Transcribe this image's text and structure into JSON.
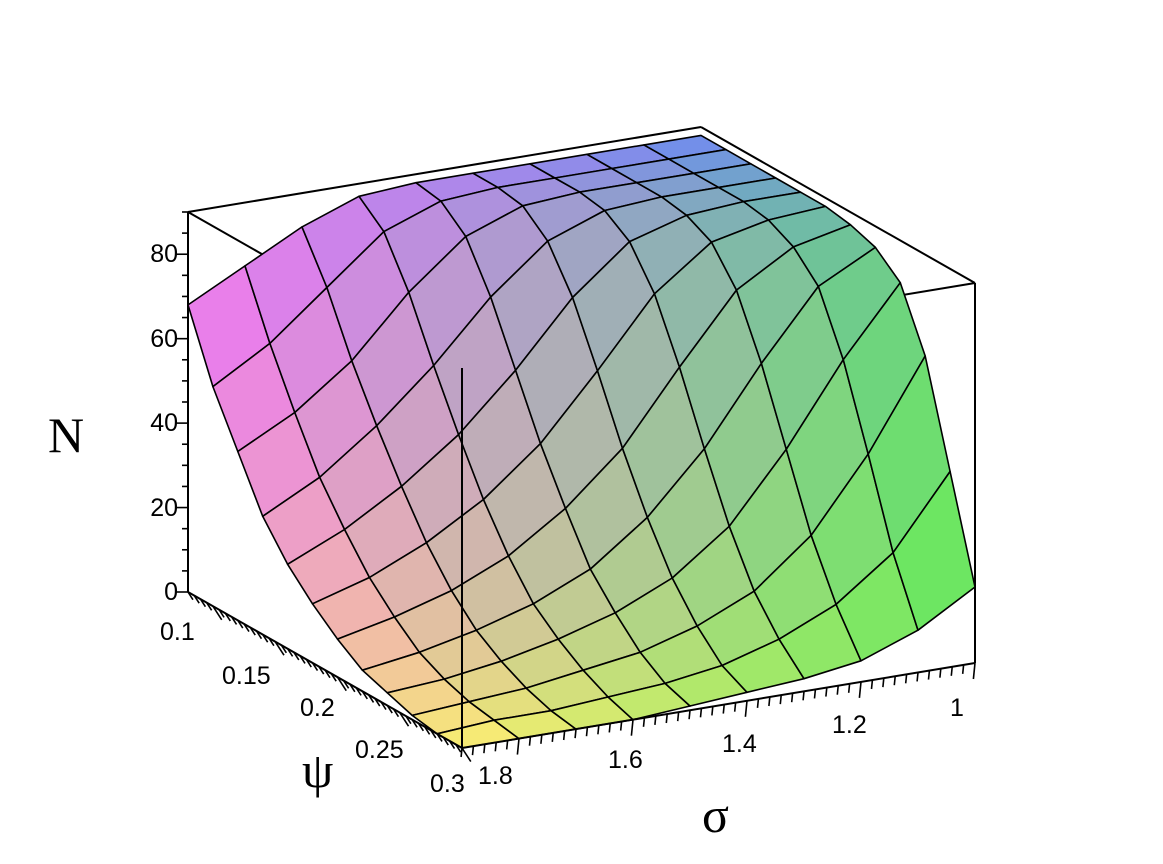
{
  "chart_data": {
    "type": "surface3d",
    "xlabel": "σ",
    "ylabel": "ψ",
    "zlabel": "N",
    "x_ticks": [
      "1",
      "1.2",
      "1.4",
      "1.6",
      "1.8"
    ],
    "y_ticks": [
      "0.1",
      "0.15",
      "0.2",
      "0.25",
      "0.3"
    ],
    "z_ticks": [
      "0",
      "20",
      "40",
      "60",
      "80"
    ],
    "xlim": [
      1,
      1.9
    ],
    "ylim": [
      0.08,
      0.3
    ],
    "zlim": [
      0,
      90
    ],
    "grid_sigma": [
      1.0,
      1.1,
      1.2,
      1.3,
      1.4,
      1.5,
      1.6,
      1.7,
      1.8,
      1.9
    ],
    "grid_psi": [
      0.08,
      0.1,
      0.12,
      0.14,
      0.16,
      0.18,
      0.2,
      0.22,
      0.24,
      0.26,
      0.28,
      0.3
    ],
    "surface_N": [
      [
        88,
        88,
        88,
        88,
        88,
        88,
        87,
        82,
        75,
        68
      ],
      [
        88,
        88,
        88,
        88,
        88,
        87,
        82,
        71,
        60,
        52
      ],
      [
        88,
        88,
        88,
        88,
        87,
        82,
        71,
        57,
        47,
        40
      ],
      [
        88,
        88,
        88,
        87,
        82,
        71,
        57,
        45,
        35,
        28
      ],
      [
        88,
        88,
        87,
        83,
        72,
        57,
        44,
        34,
        26,
        20
      ],
      [
        88,
        87,
        84,
        74,
        58,
        43,
        32,
        24,
        18,
        14
      ],
      [
        87,
        84,
        76,
        60,
        43,
        31,
        22,
        16,
        12,
        9
      ],
      [
        85,
        78,
        62,
        44,
        30,
        20,
        14,
        10,
        7,
        5
      ],
      [
        80,
        64,
        45,
        29,
        19,
        13,
        9,
        6,
        4,
        3
      ],
      [
        66,
        45,
        28,
        17,
        11,
        7,
        5,
        3,
        2,
        1
      ],
      [
        42,
        25,
        15,
        9,
        5,
        3,
        2,
        1,
        1,
        0
      ],
      [
        18,
        10,
        5,
        3,
        2,
        1,
        0,
        0,
        0,
        0
      ]
    ],
    "colors": {
      "psi_low_sigma_high": "#f078f0",
      "psi_low_sigma_low": "#6c8cf0",
      "psi_high_sigma_low": "#64ea5a",
      "psi_high_sigma_high": "#fff070"
    },
    "grid": false,
    "legend": "none"
  }
}
